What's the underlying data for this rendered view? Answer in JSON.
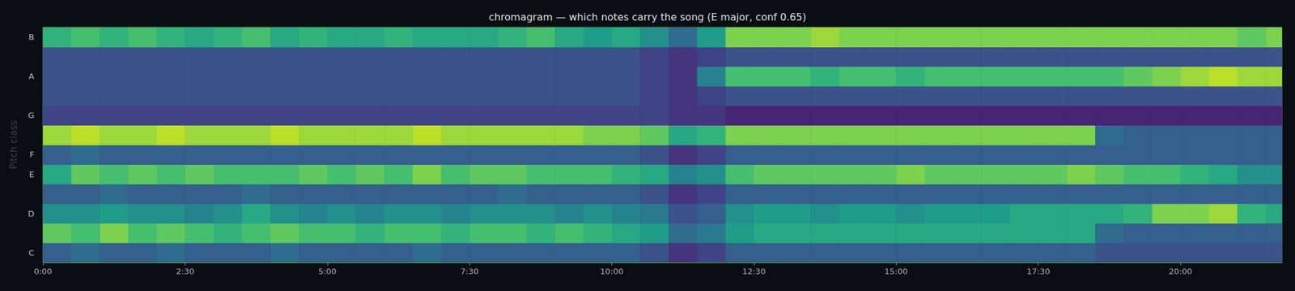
{
  "chart_data": {
    "type": "heatmap",
    "title": "chromagram — which notes carry the song (E major, conf 0.65)",
    "ylabel": "Pitch class",
    "xlim": [
      0,
      1307
    ],
    "xticks": [
      {
        "value": 0,
        "label": "0:00"
      },
      {
        "value": 150,
        "label": "2:30"
      },
      {
        "value": 300,
        "label": "5:00"
      },
      {
        "value": 450,
        "label": "7:30"
      },
      {
        "value": 600,
        "label": "10:00"
      },
      {
        "value": 750,
        "label": "12:30"
      },
      {
        "value": 900,
        "label": "15:00"
      },
      {
        "value": 1050,
        "label": "17:30"
      },
      {
        "value": 1200,
        "label": "20:00"
      }
    ],
    "categories": [
      "C",
      null,
      "D",
      null,
      "E",
      "F",
      null,
      "G",
      null,
      "A",
      null,
      "B"
    ],
    "time_bins": [
      0,
      30,
      60,
      90,
      120,
      150,
      180,
      210,
      240,
      270,
      300,
      330,
      360,
      390,
      420,
      450,
      480,
      510,
      540,
      570,
      600,
      630,
      660,
      690,
      720,
      750,
      780,
      810,
      840,
      870,
      900,
      930,
      960,
      990,
      1020,
      1050,
      1080,
      1110,
      1140,
      1170,
      1200,
      1230,
      1260,
      1290,
      1307
    ],
    "color_range": [
      0,
      1
    ],
    "cells": [
      [
        0.3,
        0.35,
        0.3,
        0.3,
        0.35,
        0.3,
        0.3,
        0.3,
        0.35,
        0.3,
        0.3,
        0.3,
        0.3,
        0.35,
        0.3,
        0.3,
        0.3,
        0.3,
        0.3,
        0.3,
        0.3,
        0.25,
        0.15,
        0.2,
        0.3,
        0.3,
        0.3,
        0.3,
        0.3,
        0.3,
        0.3,
        0.3,
        0.3,
        0.3,
        0.3,
        0.3,
        0.3,
        0.25,
        0.25,
        0.25,
        0.25,
        0.25,
        0.25,
        0.25
      ],
      [
        0.75,
        0.7,
        0.8,
        0.7,
        0.75,
        0.7,
        0.65,
        0.7,
        0.75,
        0.7,
        0.7,
        0.65,
        0.7,
        0.7,
        0.65,
        0.7,
        0.7,
        0.65,
        0.7,
        0.65,
        0.6,
        0.55,
        0.35,
        0.4,
        0.55,
        0.6,
        0.6,
        0.6,
        0.6,
        0.6,
        0.6,
        0.6,
        0.6,
        0.6,
        0.6,
        0.6,
        0.6,
        0.35,
        0.3,
        0.3,
        0.3,
        0.3,
        0.3,
        0.3
      ],
      [
        0.5,
        0.5,
        0.55,
        0.5,
        0.5,
        0.45,
        0.5,
        0.6,
        0.5,
        0.45,
        0.5,
        0.45,
        0.5,
        0.5,
        0.45,
        0.5,
        0.5,
        0.5,
        0.45,
        0.5,
        0.45,
        0.4,
        0.25,
        0.3,
        0.5,
        0.55,
        0.55,
        0.5,
        0.55,
        0.55,
        0.5,
        0.55,
        0.55,
        0.55,
        0.6,
        0.6,
        0.6,
        0.6,
        0.65,
        0.8,
        0.8,
        0.85,
        0.65,
        0.6
      ],
      [
        0.3,
        0.3,
        0.35,
        0.3,
        0.3,
        0.3,
        0.3,
        0.35,
        0.3,
        0.3,
        0.3,
        0.3,
        0.3,
        0.3,
        0.3,
        0.3,
        0.35,
        0.3,
        0.3,
        0.3,
        0.3,
        0.25,
        0.15,
        0.2,
        0.3,
        0.3,
        0.3,
        0.3,
        0.3,
        0.3,
        0.3,
        0.3,
        0.3,
        0.3,
        0.3,
        0.3,
        0.3,
        0.3,
        0.3,
        0.3,
        0.3,
        0.3,
        0.3,
        0.3
      ],
      [
        0.6,
        0.75,
        0.7,
        0.75,
        0.7,
        0.75,
        0.7,
        0.7,
        0.7,
        0.75,
        0.7,
        0.75,
        0.7,
        0.8,
        0.7,
        0.75,
        0.75,
        0.7,
        0.7,
        0.7,
        0.65,
        0.6,
        0.45,
        0.5,
        0.7,
        0.75,
        0.75,
        0.75,
        0.75,
        0.75,
        0.8,
        0.75,
        0.75,
        0.75,
        0.75,
        0.75,
        0.8,
        0.75,
        0.7,
        0.7,
        0.65,
        0.6,
        0.5,
        0.5
      ],
      [
        0.3,
        0.35,
        0.3,
        0.3,
        0.3,
        0.3,
        0.3,
        0.3,
        0.3,
        0.3,
        0.3,
        0.3,
        0.3,
        0.3,
        0.3,
        0.3,
        0.3,
        0.3,
        0.3,
        0.3,
        0.3,
        0.25,
        0.15,
        0.2,
        0.3,
        0.3,
        0.3,
        0.3,
        0.3,
        0.3,
        0.3,
        0.3,
        0.3,
        0.3,
        0.3,
        0.3,
        0.3,
        0.3,
        0.3,
        0.3,
        0.3,
        0.3,
        0.3,
        0.3
      ],
      [
        0.85,
        0.9,
        0.85,
        0.85,
        0.9,
        0.85,
        0.85,
        0.85,
        0.9,
        0.85,
        0.85,
        0.85,
        0.85,
        0.9,
        0.85,
        0.85,
        0.85,
        0.85,
        0.85,
        0.8,
        0.8,
        0.75,
        0.6,
        0.65,
        0.8,
        0.8,
        0.8,
        0.8,
        0.8,
        0.8,
        0.8,
        0.8,
        0.8,
        0.8,
        0.8,
        0.8,
        0.8,
        0.35,
        0.3,
        0.3,
        0.3,
        0.3,
        0.3,
        0.3
      ],
      [
        0.2,
        0.2,
        0.2,
        0.2,
        0.2,
        0.2,
        0.2,
        0.2,
        0.2,
        0.2,
        0.2,
        0.2,
        0.2,
        0.2,
        0.2,
        0.2,
        0.2,
        0.2,
        0.2,
        0.2,
        0.2,
        0.2,
        0.15,
        0.15,
        0.1,
        0.1,
        0.1,
        0.1,
        0.1,
        0.1,
        0.1,
        0.1,
        0.1,
        0.1,
        0.1,
        0.1,
        0.1,
        0.1,
        0.1,
        0.1,
        0.1,
        0.1,
        0.1,
        0.1
      ],
      [
        0.25,
        0.25,
        0.25,
        0.25,
        0.25,
        0.25,
        0.25,
        0.25,
        0.25,
        0.25,
        0.25,
        0.25,
        0.25,
        0.25,
        0.25,
        0.25,
        0.25,
        0.25,
        0.25,
        0.25,
        0.25,
        0.2,
        0.15,
        0.2,
        0.25,
        0.25,
        0.25,
        0.25,
        0.25,
        0.25,
        0.25,
        0.25,
        0.25,
        0.25,
        0.25,
        0.25,
        0.25,
        0.25,
        0.25,
        0.25,
        0.25,
        0.25,
        0.25,
        0.25
      ],
      [
        0.25,
        0.25,
        0.25,
        0.25,
        0.25,
        0.25,
        0.25,
        0.25,
        0.25,
        0.25,
        0.25,
        0.25,
        0.25,
        0.25,
        0.25,
        0.25,
        0.25,
        0.25,
        0.25,
        0.25,
        0.25,
        0.2,
        0.15,
        0.45,
        0.7,
        0.7,
        0.7,
        0.65,
        0.7,
        0.7,
        0.65,
        0.7,
        0.7,
        0.7,
        0.7,
        0.7,
        0.7,
        0.7,
        0.75,
        0.8,
        0.85,
        0.9,
        0.85,
        0.85
      ],
      [
        0.25,
        0.25,
        0.25,
        0.25,
        0.25,
        0.25,
        0.25,
        0.25,
        0.25,
        0.25,
        0.25,
        0.25,
        0.25,
        0.25,
        0.25,
        0.25,
        0.25,
        0.25,
        0.25,
        0.25,
        0.25,
        0.2,
        0.15,
        0.2,
        0.25,
        0.25,
        0.25,
        0.25,
        0.25,
        0.25,
        0.25,
        0.25,
        0.25,
        0.25,
        0.25,
        0.25,
        0.25,
        0.25,
        0.25,
        0.25,
        0.25,
        0.25,
        0.25,
        0.25
      ],
      [
        0.65,
        0.7,
        0.65,
        0.7,
        0.65,
        0.6,
        0.65,
        0.7,
        0.6,
        0.65,
        0.6,
        0.6,
        0.65,
        0.6,
        0.6,
        0.6,
        0.65,
        0.7,
        0.6,
        0.55,
        0.6,
        0.5,
        0.35,
        0.55,
        0.8,
        0.8,
        0.8,
        0.85,
        0.8,
        0.8,
        0.8,
        0.8,
        0.8,
        0.8,
        0.8,
        0.8,
        0.8,
        0.8,
        0.8,
        0.8,
        0.8,
        0.8,
        0.75,
        0.8
      ]
    ]
  }
}
